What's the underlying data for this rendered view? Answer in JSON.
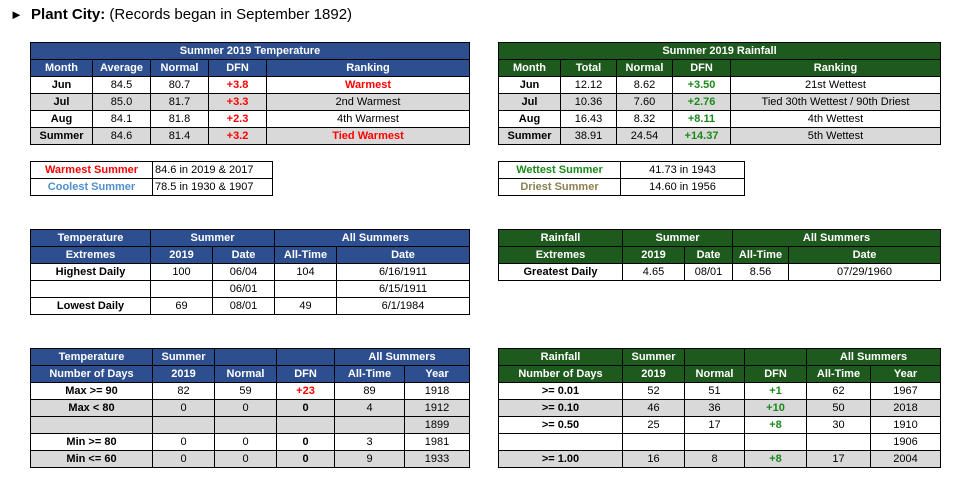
{
  "header": {
    "arrow": "►",
    "city": "Plant City:",
    "note": "(Records began in September 1892)"
  },
  "temp": {
    "title": "Summer 2019 Temperature",
    "cols": [
      "Month",
      "Average",
      "Normal",
      "DFN",
      "Ranking"
    ],
    "rows": [
      [
        "Jun",
        "84.5",
        "80.7",
        "+3.8",
        "Warmest"
      ],
      [
        "Jul",
        "85.0",
        "81.7",
        "+3.3",
        "2nd Warmest"
      ],
      [
        "Aug",
        "84.1",
        "81.8",
        "+2.3",
        "4th Warmest"
      ],
      [
        "Summer",
        "84.6",
        "81.4",
        "+3.2",
        "Tied Warmest"
      ]
    ]
  },
  "rain": {
    "title": "Summer 2019 Rainfall",
    "cols": [
      "Month",
      "Total",
      "Normal",
      "DFN",
      "Ranking"
    ],
    "rows": [
      [
        "Jun",
        "12.12",
        "8.62",
        "+3.50",
        "21st Wettest"
      ],
      [
        "Jul",
        "10.36",
        "7.60",
        "+2.76",
        "Tied 30th Wettest / 90th Driest"
      ],
      [
        "Aug",
        "16.43",
        "8.32",
        "+8.11",
        "4th Wettest"
      ],
      [
        "Summer",
        "38.91",
        "24.54",
        "+14.37",
        "5th Wettest"
      ]
    ]
  },
  "temp_records": [
    [
      "Warmest Summer",
      "84.6 in 2019 & 2017"
    ],
    [
      "Coolest Summer",
      "78.5 in 1930 & 1907"
    ]
  ],
  "rain_records": [
    [
      "Wettest Summer",
      "41.73 in 1943"
    ],
    [
      "Driest Summer",
      "14.60 in 1956"
    ]
  ],
  "temp_ext": {
    "h1": "Temperature",
    "h2": "Extremes",
    "summer": "Summer",
    "all": "All Summers",
    "c2019": "2019",
    "cdate": "Date",
    "callt": "All-Time",
    "cdate2": "Date",
    "rows": [
      [
        "Highest Daily",
        "100",
        "06/04",
        "104",
        "6/16/1911"
      ],
      [
        "",
        "",
        "06/01",
        "",
        "6/15/1911"
      ],
      [
        "Lowest Daily",
        "69",
        "08/01",
        "49",
        "6/1/1984"
      ]
    ]
  },
  "rain_ext": {
    "h1": "Rainfall",
    "h2": "Extremes",
    "summer": "Summer",
    "all": "All Summers",
    "c2019": "2019",
    "cdate": "Date",
    "callt": "All-Time",
    "cdate2": "Date",
    "rows": [
      [
        "Greatest Daily",
        "4.65",
        "08/01",
        "8.56",
        "07/29/1960"
      ]
    ]
  },
  "temp_days": {
    "h1": "Temperature",
    "h2": "Number of Days",
    "summer": "Summer",
    "all": "All Summers",
    "c2019": "2019",
    "cnorm": "Normal",
    "cdfn": "DFN",
    "callt": "All-Time",
    "cyear": "Year",
    "rows": [
      [
        "Max >= 90",
        "82",
        "59",
        "+23",
        "89",
        "1918"
      ],
      [
        "Max < 80",
        "0",
        "0",
        "0",
        "4",
        "1912"
      ],
      [
        "",
        "",
        "",
        "",
        "",
        "1899"
      ],
      [
        "Min >= 80",
        "0",
        "0",
        "0",
        "3",
        "1981"
      ],
      [
        "Min <= 60",
        "0",
        "0",
        "0",
        "9",
        "1933"
      ]
    ]
  },
  "rain_days": {
    "h1": "Rainfall",
    "h2": "Number of Days",
    "summer": "Summer",
    "all": "All Summers",
    "c2019": "2019",
    "cnorm": "Normal",
    "cdfn": "DFN",
    "callt": "All-Time",
    "cyear": "Year",
    "rows": [
      [
        ">= 0.01",
        "52",
        "51",
        "+1",
        "62",
        "1967"
      ],
      [
        ">= 0.10",
        "46",
        "36",
        "+10",
        "50",
        "2018"
      ],
      [
        ">= 0.50",
        "25",
        "17",
        "+8",
        "30",
        "1910"
      ],
      [
        "",
        "",
        "",
        "",
        "",
        "1906"
      ],
      [
        ">= 1.00",
        "16",
        "8",
        "+8",
        "17",
        "2004"
      ]
    ]
  },
  "colors": {
    "blue_header": "#2e4f8f",
    "green_header": "#1e5a1e",
    "gray_row": "#d9d9d9",
    "red": "#ff0000",
    "green": "#1a8a1a"
  }
}
